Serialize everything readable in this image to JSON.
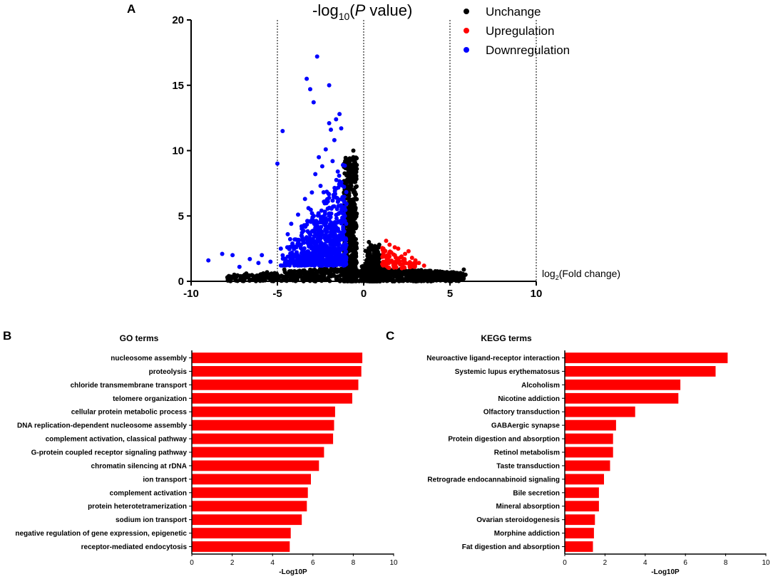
{
  "panels": {
    "a": "A",
    "b": "B",
    "c": "C"
  },
  "chart_data": [
    {
      "type": "scatter",
      "panel": "A",
      "title_prefix": "-log",
      "title_sub": "10",
      "title_open": "(",
      "title_p": "P",
      "title_suffix": " value)",
      "xlabel_prefix": "log",
      "xlabel_sub": "2",
      "xlabel_suffix": "(Fold change)",
      "xlim": [
        -10,
        10
      ],
      "ylim": [
        0,
        20
      ],
      "xticks": [
        "-10",
        "-5",
        "0",
        "5",
        "10"
      ],
      "yticks": [
        "0",
        "5",
        "10",
        "15",
        "20"
      ],
      "threshold_lines_x": [
        -5,
        0,
        5,
        10
      ],
      "legend": [
        {
          "label": "Unchange",
          "color": "#000000"
        },
        {
          "label": "Upregulation",
          "color": "#ff0000"
        },
        {
          "label": "Downregulation",
          "color": "#0000ff"
        }
      ],
      "series": [
        {
          "name": "Downregulation",
          "color": "#0000ff",
          "points": [
            [
              -9,
              1.6
            ],
            [
              -8.2,
              2.1
            ],
            [
              -7.6,
              2.0
            ],
            [
              -7.2,
              1.1
            ],
            [
              -6.6,
              1.7
            ],
            [
              -6.1,
              1.4
            ],
            [
              -5.9,
              2.0
            ],
            [
              -5.4,
              1.5
            ],
            [
              -5.0,
              9.0
            ],
            [
              -4.7,
              11.5
            ],
            [
              -4.8,
              2.5
            ],
            [
              -4.4,
              3.6
            ],
            [
              -4.2,
              4.4
            ],
            [
              -4.0,
              3.2
            ],
            [
              -3.8,
              5.1
            ],
            [
              -3.6,
              4.2
            ],
            [
              -3.4,
              6.3
            ],
            [
              -3.3,
              15.5
            ],
            [
              -3.2,
              5.6
            ],
            [
              -3.1,
              14.7
            ],
            [
              -3.0,
              6.8
            ],
            [
              -2.9,
              13.7
            ],
            [
              -2.8,
              8.2
            ],
            [
              -2.7,
              17.2
            ],
            [
              -2.6,
              9.5
            ],
            [
              -2.5,
              7.3
            ],
            [
              -2.4,
              8.8
            ],
            [
              -2.2,
              10.1
            ],
            [
              -2.0,
              15.0
            ],
            [
              -2.0,
              12.1
            ],
            [
              -1.9,
              11.6
            ],
            [
              -1.8,
              9.2
            ],
            [
              -1.7,
              10.8
            ],
            [
              -1.6,
              12.4
            ],
            [
              -1.5,
              8.4
            ],
            [
              -1.4,
              12.8
            ],
            [
              -1.3,
              11.7
            ],
            [
              -1.2,
              8.9
            ],
            [
              -3.5,
              3.0
            ],
            [
              -3.9,
              2.6
            ],
            [
              -2.3,
              6.1
            ],
            [
              -1.6,
              7.1
            ]
          ],
          "cloud": {
            "x_range": [
              -4.8,
              -1.0
            ],
            "count": 750
          }
        },
        {
          "name": "Upregulation",
          "color": "#ff0000",
          "points": [
            [
              1.1,
              2.4
            ],
            [
              1.3,
              3.1
            ],
            [
              1.5,
              2.8
            ],
            [
              1.6,
              2.2
            ],
            [
              1.8,
              2.6
            ],
            [
              2.0,
              2.5
            ],
            [
              2.2,
              1.9
            ],
            [
              2.4,
              2.1
            ],
            [
              2.6,
              2.3
            ],
            [
              2.8,
              1.8
            ],
            [
              3.0,
              1.6
            ],
            [
              3.2,
              1.4
            ],
            [
              3.5,
              1.2
            ],
            [
              1.4,
              1.7
            ],
            [
              1.9,
              1.5
            ],
            [
              2.3,
              1.6
            ],
            [
              1.2,
              1.9
            ],
            [
              2.7,
              1.4
            ]
          ],
          "cloud": {
            "x_range": [
              1.0,
              3.0
            ],
            "count": 70
          }
        },
        {
          "name": "Unchange",
          "color": "#000000",
          "points": [
            [
              -7.5,
              0.5
            ],
            [
              -7.9,
              0.3
            ],
            [
              -6.8,
              0.6
            ],
            [
              -6.4,
              0.4
            ],
            [
              -5.6,
              0.7
            ],
            [
              -4.6,
              0.9
            ],
            [
              -0.6,
              10.0
            ],
            [
              -0.8,
              9.2
            ],
            [
              -0.4,
              8.9
            ],
            [
              0.3,
              3.0
            ],
            [
              0.5,
              2.5
            ],
            [
              0.9,
              2.8
            ],
            [
              4.3,
              0.6
            ],
            [
              5.2,
              0.7
            ],
            [
              5.8,
              0.9
            ],
            [
              5.9,
              0.5
            ],
            [
              5.5,
              0.4
            ],
            [
              4.9,
              0.5
            ],
            [
              3.8,
              0.8
            ]
          ],
          "cloud": {
            "x_range": [
              -8.0,
              5.8
            ],
            "count": 1500
          }
        }
      ]
    },
    {
      "type": "bar",
      "orientation": "horizontal",
      "panel": "B",
      "title": "GO terms",
      "xlabel": "-Log10P",
      "xlim": [
        0,
        10
      ],
      "xticks": [
        "0",
        "2",
        "4",
        "6",
        "8",
        "10"
      ],
      "color": "#ff0000",
      "categories": [
        "nucleosome assembly",
        "proteolysis",
        "chloride transmembrane transport",
        "telomere organization",
        "cellular protein metabolic process",
        "DNA replication-dependent nucleosome assembly",
        "complement activation, classical pathway",
        "G-protein coupled receptor signaling pathway",
        "chromatin silencing at rDNA",
        "ion transport",
        "complement activation",
        "protein heterotetramerization",
        "sodium ion transport",
        "negative regulation of gene expression, epigenetic",
        "receptor-mediated endocytosis"
      ],
      "values": [
        8.45,
        8.4,
        8.25,
        7.95,
        7.1,
        7.05,
        7.0,
        6.55,
        6.3,
        5.9,
        5.75,
        5.7,
        5.45,
        4.9,
        4.85
      ]
    },
    {
      "type": "bar",
      "orientation": "horizontal",
      "panel": "C",
      "title": "KEGG terms",
      "xlabel": "-Log10P",
      "xlim": [
        0,
        10
      ],
      "xticks": [
        "0",
        "2",
        "4",
        "6",
        "8",
        "10"
      ],
      "color": "#ff0000",
      "categories": [
        "Neuroactive ligand-receptor interaction",
        "Systemic lupus erythematosus",
        "Alcoholism",
        "Nicotine addiction",
        "Olfactory transduction",
        "GABAergic synapse",
        "Protein digestion and absorption",
        "Retinol metabolism",
        "Taste transduction",
        "Retrograde endocannabinoid signaling",
        "Bile secretion",
        "Mineral absorption",
        "Ovarian steroidogenesis",
        "Morphine addiction",
        "Fat digestion and absorption"
      ],
      "values": [
        8.1,
        7.5,
        5.75,
        5.65,
        3.5,
        2.55,
        2.4,
        2.4,
        2.25,
        1.95,
        1.7,
        1.7,
        1.5,
        1.45,
        1.4
      ]
    }
  ]
}
